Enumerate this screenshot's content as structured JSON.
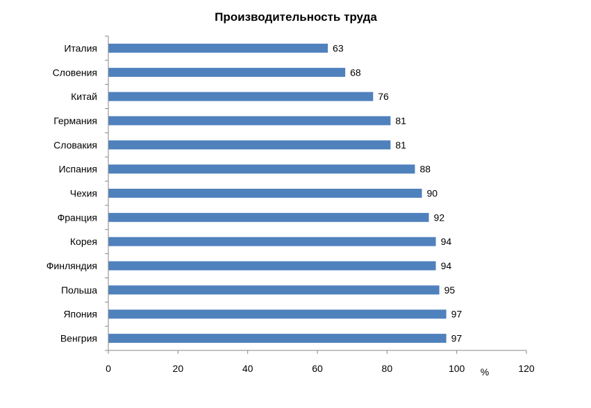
{
  "chart_data": {
    "type": "bar",
    "orientation": "horizontal",
    "title": "Производительность труда",
    "categories": [
      "Италия",
      "Словения",
      "Китай",
      "Германия",
      "Словакия",
      "Испания",
      "Чехия",
      "Франция",
      "Корея",
      "Финляндия",
      "Польша",
      "Япония",
      "Венгрия"
    ],
    "values": [
      63,
      68,
      76,
      81,
      81,
      88,
      90,
      92,
      94,
      94,
      95,
      97,
      97
    ],
    "xlim": [
      0,
      120
    ],
    "xticks": [
      0,
      20,
      40,
      60,
      80,
      100,
      120
    ],
    "xlabel": "%",
    "ylabel": "",
    "grid": false,
    "legend": "none",
    "bar_color": "#4f81bd",
    "data_labels": true
  }
}
